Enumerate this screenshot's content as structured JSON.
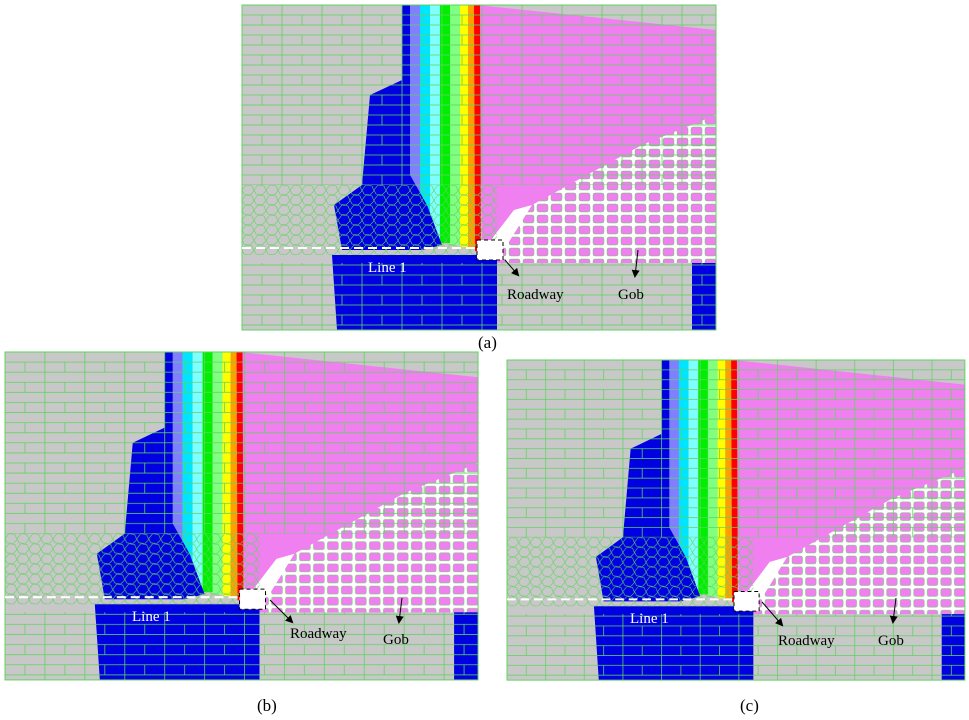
{
  "panels": [
    {
      "caption": "(a)",
      "line": "Line 1",
      "roadway": "Roadway",
      "gob": "Gob"
    },
    {
      "caption": "(b)",
      "line": "Line 1",
      "roadway": "Roadway",
      "gob": "Gob"
    },
    {
      "caption": "(c)",
      "line": "Line 1",
      "roadway": "Roadway",
      "gob": "Gob"
    }
  ]
}
